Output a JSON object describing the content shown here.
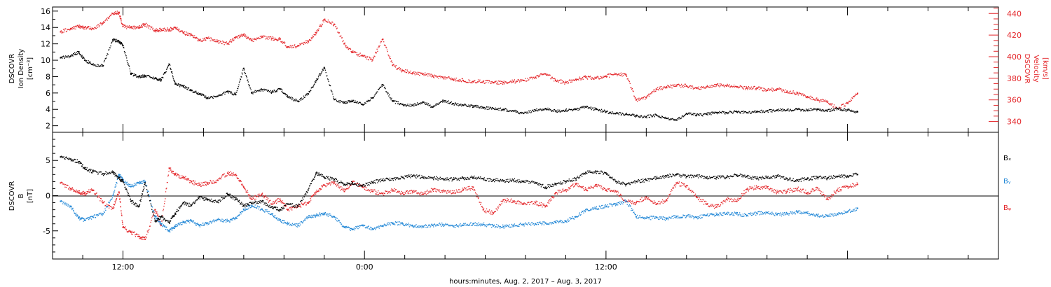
{
  "chart_data": [
    {
      "type": "scatter",
      "title": "",
      "ylabel": [
        "DSCOVR",
        "Ion Density",
        "[cm⁻³]"
      ],
      "ylabel_right": [
        "DSCOVR",
        "Velocity",
        "[km/s]"
      ],
      "ylim": [
        1.2,
        16.5
      ],
      "yticks": [
        "2",
        "4",
        "6",
        "8",
        "10",
        "12",
        "14",
        "16"
      ],
      "ylim_right": [
        330,
        446
      ],
      "yticks_right": [
        "340",
        "360",
        "380",
        "400",
        "420",
        "440"
      ],
      "colors": {
        "density": "#000000",
        "velocity": "#e4262a"
      },
      "series": [
        {
          "axis": "left",
          "x": [
            -3.1,
            -2.6,
            -2.2,
            -1.9,
            -1.5,
            -1.0,
            -0.5,
            -0.2,
            0.0,
            0.4,
            0.8,
            1.1,
            1.6,
            1.9,
            2.3,
            2.6,
            3.0,
            3.4,
            3.8,
            4.2,
            4.7,
            5.2,
            5.6,
            6.0,
            6.4,
            6.9,
            7.4,
            7.8,
            8.2,
            8.7,
            9.2,
            9.6,
            10.0,
            10.5,
            11.0,
            11.4,
            11.9,
            12.4,
            12.9,
            13.4,
            13.9,
            14.4,
            14.9,
            15.4,
            15.9,
            16.4,
            16.9,
            17.4,
            17.9,
            18.4,
            18.9,
            19.4,
            19.9,
            20.5,
            21.0,
            21.5,
            22.0,
            22.5,
            23.0,
            23.5,
            24.0,
            24.5,
            25.0,
            25.5,
            26.0,
            26.5,
            27.0,
            27.5,
            28.0,
            28.5,
            29.0,
            29.5,
            30.0,
            30.5,
            31.0,
            31.5,
            32.0,
            32.5,
            33.0,
            33.5,
            34.0,
            34.5,
            35.0,
            35.5,
            36.0,
            36.5
          ],
          "y": [
            10.3,
            10.5,
            11.0,
            10.0,
            9.5,
            9.3,
            12.5,
            12.3,
            11.8,
            8.3,
            8.0,
            8.1,
            7.8,
            7.6,
            9.5,
            7.1,
            6.8,
            6.3,
            5.9,
            5.4,
            5.6,
            6.2,
            5.8,
            9.0,
            6.0,
            6.4,
            6.1,
            6.5,
            5.5,
            5.0,
            5.9,
            7.5,
            9.1,
            5.2,
            4.8,
            5.0,
            4.6,
            5.4,
            7.0,
            5.0,
            4.6,
            4.5,
            4.9,
            4.3,
            5.1,
            4.7,
            4.5,
            4.4,
            4.2,
            4.1,
            4.0,
            3.8,
            3.5,
            3.9,
            4.1,
            3.8,
            3.9,
            4.0,
            4.3,
            4.0,
            3.7,
            3.5,
            3.4,
            3.2,
            3.1,
            3.3,
            2.9,
            2.7,
            3.5,
            3.3,
            3.4,
            3.6,
            3.6,
            3.7,
            3.6,
            3.7,
            3.8,
            3.9,
            3.9,
            4.0,
            3.9,
            4.0,
            3.8,
            4.1,
            3.9,
            3.7
          ]
        },
        {
          "axis": "right",
          "x": [
            -3.1,
            -2.6,
            -2.2,
            -1.9,
            -1.5,
            -1.0,
            -0.5,
            -0.2,
            0.0,
            0.4,
            0.8,
            1.1,
            1.6,
            1.9,
            2.3,
            2.6,
            3.0,
            3.4,
            3.8,
            4.2,
            4.7,
            5.2,
            5.6,
            6.0,
            6.4,
            6.9,
            7.4,
            7.8,
            8.2,
            8.7,
            9.2,
            9.6,
            10.0,
            10.5,
            11.0,
            11.4,
            11.9,
            12.4,
            12.9,
            13.4,
            13.9,
            14.4,
            14.9,
            15.4,
            15.9,
            16.4,
            16.9,
            17.4,
            17.9,
            18.4,
            18.9,
            19.4,
            19.9,
            20.5,
            21.0,
            21.5,
            22.0,
            22.5,
            23.0,
            23.5,
            24.0,
            24.5,
            25.0,
            25.5,
            26.0,
            26.5,
            27.0,
            27.5,
            28.0,
            28.5,
            29.0,
            29.5,
            30.0,
            30.5,
            31.0,
            31.5,
            32.0,
            32.5,
            33.0,
            33.5,
            34.0,
            34.5,
            35.0,
            35.5,
            36.0,
            36.5
          ],
          "y": [
            423,
            426,
            428,
            427,
            426,
            431,
            440,
            441,
            428,
            427,
            427,
            430,
            424,
            425,
            425,
            427,
            422,
            420,
            415,
            417,
            414,
            412,
            418,
            420,
            415,
            418,
            417,
            416,
            409,
            410,
            414,
            422,
            434,
            430,
            412,
            404,
            401,
            397,
            416,
            392,
            387,
            385,
            384,
            382,
            381,
            379,
            378,
            377,
            377,
            376,
            376,
            377,
            378,
            381,
            384,
            378,
            376,
            379,
            381,
            380,
            382,
            384,
            383,
            360,
            362,
            370,
            372,
            373,
            373,
            371,
            372,
            374,
            373,
            372,
            371,
            371,
            369,
            370,
            368,
            366,
            363,
            360,
            358,
            352,
            357,
            366
          ]
        }
      ]
    },
    {
      "type": "scatter",
      "title": "",
      "ylabel": [
        "DSCOVR",
        "B",
        "[nT]"
      ],
      "ylim": [
        -9,
        9
      ],
      "yticks": [
        "-5",
        "0",
        "5"
      ],
      "colors": {
        "Bx": "#000000",
        "By": "#1f86d6",
        "Bz": "#e4262a"
      },
      "legend": [
        "Bₓ",
        "Bᵧ",
        "Bᵩ"
      ],
      "series": [
        {
          "key": "Bx",
          "x": [
            -3.1,
            -2.6,
            -2.2,
            -1.9,
            -1.5,
            -1.0,
            -0.5,
            -0.2,
            0.0,
            0.4,
            0.8,
            1.1,
            1.6,
            1.9,
            2.3,
            2.6,
            3.0,
            3.4,
            3.8,
            4.2,
            4.7,
            5.2,
            5.6,
            6.0,
            6.4,
            6.9,
            7.4,
            7.8,
            8.2,
            8.7,
            9.2,
            9.6,
            10.0,
            10.5,
            11.0,
            11.4,
            11.9,
            12.4,
            12.9,
            13.4,
            13.9,
            14.4,
            14.9,
            15.4,
            15.9,
            16.4,
            16.9,
            17.4,
            17.9,
            18.4,
            18.9,
            19.4,
            19.9,
            20.5,
            21.0,
            21.5,
            22.0,
            22.5,
            23.0,
            23.5,
            24.0,
            24.5,
            25.0,
            25.5,
            26.0,
            26.5,
            27.0,
            27.5,
            28.0,
            28.5,
            29.0,
            29.5,
            30.0,
            30.5,
            31.0,
            31.5,
            32.0,
            32.5,
            33.0,
            33.5,
            34.0,
            34.5,
            35.0,
            35.5,
            36.0,
            36.5
          ],
          "y": [
            5.5,
            5.2,
            4.8,
            3.9,
            3.4,
            3.1,
            3.3,
            2.5,
            2.0,
            -0.8,
            -1.5,
            1.8,
            -3.6,
            -3.0,
            -3.8,
            -2.5,
            -1.0,
            -1.4,
            -0.2,
            -0.6,
            -0.9,
            0.2,
            -0.5,
            -1.4,
            -1.1,
            -0.8,
            -1.6,
            -2.0,
            -1.2,
            -1.5,
            0.8,
            3.2,
            2.6,
            2.3,
            1.6,
            1.8,
            1.4,
            1.9,
            2.2,
            2.4,
            2.6,
            2.8,
            2.6,
            2.5,
            2.4,
            2.3,
            2.5,
            2.6,
            2.4,
            2.2,
            2.1,
            2.2,
            2.0,
            1.8,
            1.2,
            1.7,
            2.0,
            2.4,
            3.3,
            3.4,
            3.2,
            2.0,
            1.6,
            2.0,
            2.2,
            2.5,
            2.8,
            3.0,
            2.7,
            2.8,
            2.5,
            2.6,
            2.6,
            2.9,
            2.7,
            2.4,
            2.6,
            2.8,
            2.4,
            2.2,
            2.4,
            2.6,
            2.5,
            2.7,
            2.8,
            3.0
          ]
        },
        {
          "key": "By",
          "x": [
            -3.1,
            -2.6,
            -2.2,
            -1.9,
            -1.5,
            -1.0,
            -0.5,
            -0.2,
            0.0,
            0.4,
            0.8,
            1.1,
            1.6,
            1.9,
            2.3,
            2.6,
            3.0,
            3.4,
            3.8,
            4.2,
            4.7,
            5.2,
            5.6,
            6.0,
            6.4,
            6.9,
            7.4,
            7.8,
            8.2,
            8.7,
            9.2,
            9.6,
            10.0,
            10.5,
            11.0,
            11.4,
            11.9,
            12.4,
            12.9,
            13.4,
            13.9,
            14.4,
            14.9,
            15.4,
            15.9,
            16.4,
            16.9,
            17.4,
            17.9,
            18.4,
            18.9,
            19.4,
            19.9,
            20.5,
            21.0,
            21.5,
            22.0,
            22.5,
            23.0,
            23.5,
            24.0,
            24.5,
            25.0,
            25.5,
            26.0,
            26.5,
            27.0,
            27.5,
            28.0,
            28.5,
            29.0,
            29.5,
            30.0,
            30.5,
            31.0,
            31.5,
            32.0,
            32.5,
            33.0,
            33.5,
            34.0,
            34.5,
            35.0,
            35.5,
            36.0,
            36.5
          ],
          "y": [
            -0.8,
            -1.5,
            -3.2,
            -3.5,
            -3.0,
            -2.6,
            0.0,
            3.0,
            2.2,
            1.3,
            1.8,
            2.0,
            -3.0,
            -4.0,
            -5.0,
            -4.4,
            -3.8,
            -3.6,
            -4.2,
            -3.9,
            -3.4,
            -3.6,
            -3.2,
            -2.0,
            -1.4,
            -1.9,
            -2.6,
            -3.5,
            -4.0,
            -4.2,
            -3.1,
            -2.8,
            -2.5,
            -3.0,
            -4.5,
            -4.8,
            -4.2,
            -4.7,
            -4.3,
            -3.9,
            -4.0,
            -4.3,
            -4.4,
            -4.2,
            -4.1,
            -4.3,
            -4.2,
            -4.0,
            -4.1,
            -4.3,
            -4.4,
            -4.2,
            -4.1,
            -4.0,
            -3.9,
            -3.8,
            -3.6,
            -3.0,
            -2.0,
            -1.8,
            -1.5,
            -1.2,
            -0.8,
            -3.0,
            -3.2,
            -3.1,
            -3.3,
            -3.0,
            -2.9,
            -3.1,
            -2.8,
            -2.7,
            -2.5,
            -2.6,
            -2.8,
            -2.5,
            -2.4,
            -2.7,
            -2.6,
            -2.3,
            -2.5,
            -2.8,
            -2.9,
            -2.6,
            -2.3,
            -1.8
          ]
        },
        {
          "key": "Bz",
          "x": [
            -3.1,
            -2.6,
            -2.2,
            -1.9,
            -1.5,
            -1.0,
            -0.5,
            -0.2,
            0.0,
            0.4,
            0.8,
            1.1,
            1.6,
            1.9,
            2.3,
            2.6,
            3.0,
            3.4,
            3.8,
            4.2,
            4.7,
            5.2,
            5.6,
            6.0,
            6.4,
            6.9,
            7.4,
            7.8,
            8.2,
            8.7,
            9.2,
            9.6,
            10.0,
            10.5,
            11.0,
            11.4,
            11.9,
            12.4,
            12.9,
            13.4,
            13.9,
            14.4,
            14.9,
            15.4,
            15.9,
            16.4,
            16.9,
            17.4,
            17.9,
            18.4,
            18.9,
            19.4,
            19.9,
            20.5,
            21.0,
            21.5,
            22.0,
            22.5,
            23.0,
            23.5,
            24.0,
            24.5,
            25.0,
            25.5,
            26.0,
            26.5,
            27.0,
            27.5,
            28.0,
            28.5,
            29.0,
            29.5,
            30.0,
            30.5,
            31.0,
            31.5,
            32.0,
            32.5,
            33.0,
            33.5,
            34.0,
            34.5,
            35.0,
            35.5,
            36.0,
            36.5
          ],
          "y": [
            1.8,
            1.0,
            0.4,
            0.3,
            0.8,
            -1.0,
            -1.8,
            0.5,
            -4.5,
            -5.2,
            -5.8,
            -6.2,
            -2.0,
            -4.2,
            3.9,
            3.0,
            2.6,
            2.0,
            1.5,
            1.8,
            2.2,
            3.2,
            3.0,
            1.2,
            -0.5,
            0.2,
            -1.2,
            -0.5,
            -2.0,
            -1.5,
            -1.0,
            0.5,
            1.5,
            1.8,
            0.6,
            2.0,
            1.2,
            0.6,
            0.3,
            0.8,
            0.4,
            0.6,
            0.2,
            0.9,
            0.7,
            0.4,
            0.8,
            1.2,
            -2.0,
            -2.5,
            -0.6,
            -0.8,
            -1.2,
            -1.0,
            -1.5,
            0.4,
            0.8,
            1.6,
            0.9,
            1.4,
            0.8,
            0.6,
            -0.8,
            -1.0,
            -0.2,
            -1.2,
            -0.6,
            1.8,
            1.4,
            -0.2,
            -1.2,
            -1.6,
            -0.5,
            -0.8,
            0.9,
            1.2,
            1.1,
            0.5,
            0.6,
            1.0,
            0.4,
            1.1,
            -0.5,
            0.8,
            1.3,
            1.6
          ]
        }
      ]
    }
  ],
  "x_axis": {
    "xlabel": "hours:minutes, Aug.  2, 2017 – Aug.  3, 2017",
    "xlim": [
      -3.5,
      43.5
    ],
    "ticks": [
      {
        "x": 0,
        "label": "12:00"
      },
      {
        "x": 12,
        "label": "0:00"
      },
      {
        "x": 24,
        "label": "12:00"
      }
    ]
  }
}
